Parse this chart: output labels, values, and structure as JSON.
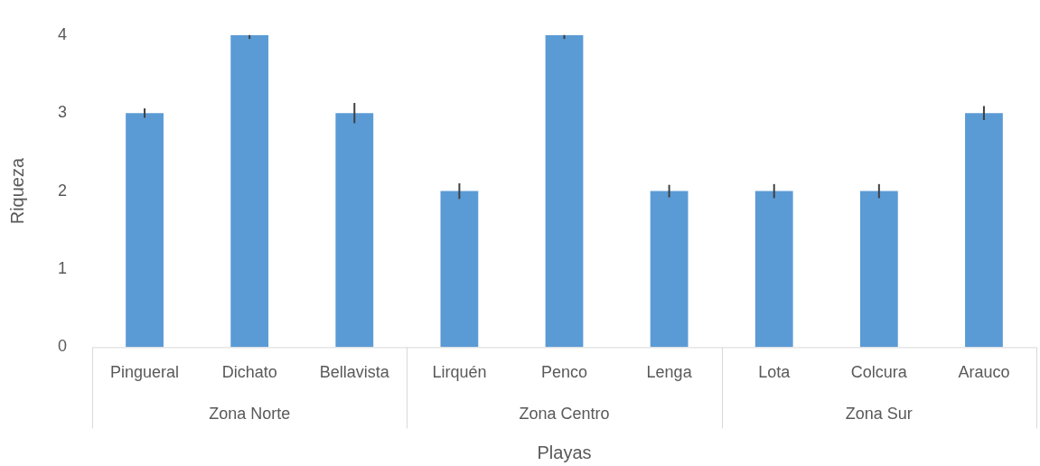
{
  "chart_data": {
    "type": "bar",
    "xlabel": "Playas",
    "ylabel": "Riqueza",
    "categories": [
      "Pingueral",
      "Dichato",
      "Bellavista",
      "Lirquén",
      "Penco",
      "Lenga",
      "Lota",
      "Colcura",
      "Arauco"
    ],
    "values": [
      3,
      4,
      3,
      2,
      4,
      2,
      2,
      2,
      3
    ],
    "errors": [
      0.06,
      [
        3.95,
        4
      ],
      0.13,
      0.1,
      [
        3.95,
        4
      ],
      0.08,
      0.09,
      0.09,
      0.09
    ],
    "color": "#5b9bd5",
    "ylim": [
      0,
      4
    ],
    "yticks": [
      0,
      1,
      2,
      3,
      4
    ],
    "grid": false,
    "legend": false,
    "annotations": [
      "Zona Norte",
      "Zona Centro",
      "Zona Sur"
    ]
  }
}
